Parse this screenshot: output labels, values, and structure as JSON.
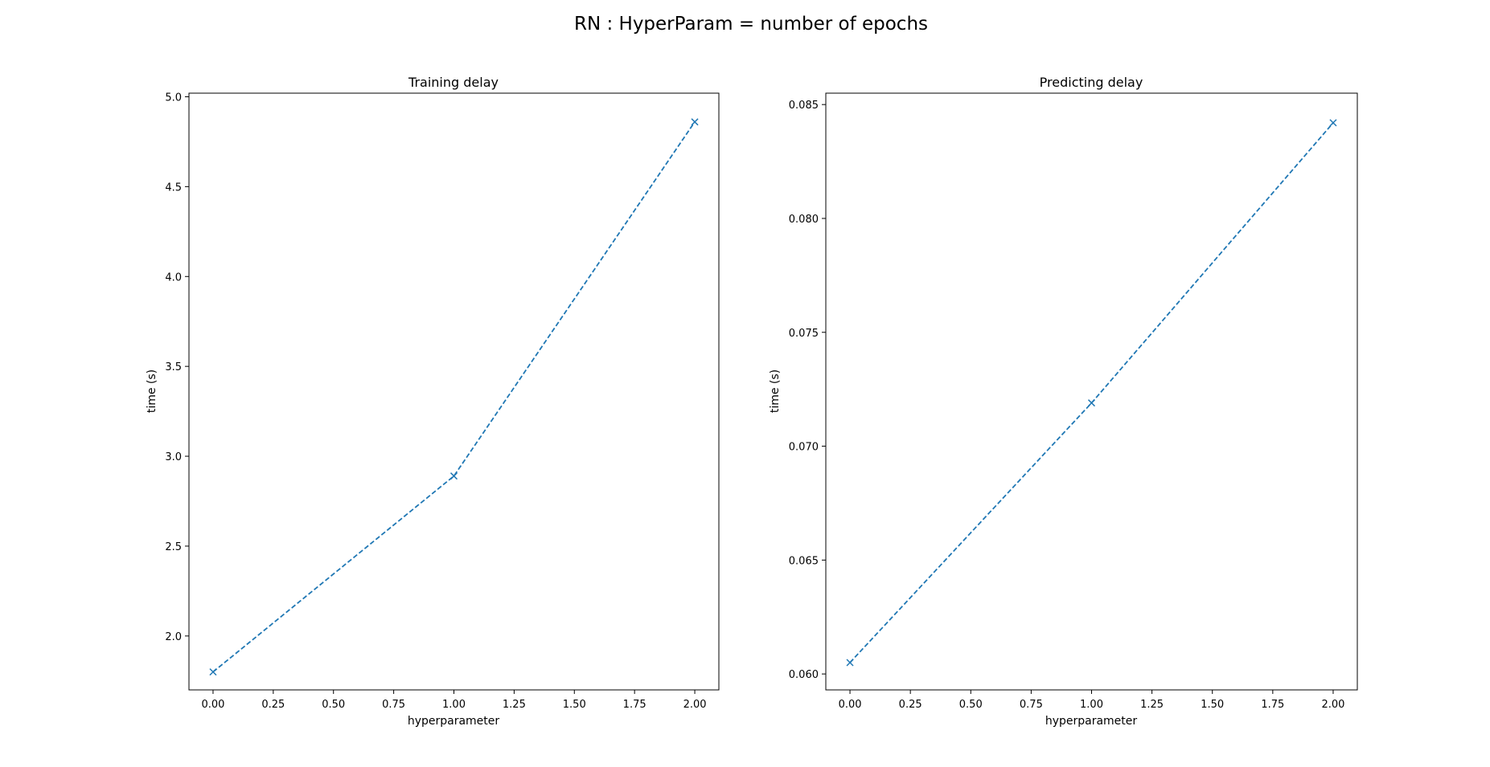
{
  "suptitle": "RN : HyperParam = number of epochs",
  "style": {
    "series_color": "#1f77b4",
    "line_style": "dashed",
    "marker": "x"
  },
  "chart_data": [
    {
      "type": "line",
      "title": "Training delay",
      "xlabel": "hyperparameter",
      "ylabel": "time (s)",
      "xlim": [
        -0.1,
        2.1
      ],
      "ylim": [
        1.7,
        5.02
      ],
      "xticks": [
        0,
        0.25,
        0.5,
        0.75,
        1,
        1.25,
        1.5,
        1.75,
        2
      ],
      "xtick_labels": [
        "0.00",
        "0.25",
        "0.50",
        "0.75",
        "1.00",
        "1.25",
        "1.50",
        "1.75",
        "2.00"
      ],
      "yticks": [
        2,
        2.5,
        3,
        3.5,
        4,
        4.5,
        5
      ],
      "ytick_labels": [
        "2.0",
        "2.5",
        "3.0",
        "3.5",
        "4.0",
        "4.5",
        "5.0"
      ],
      "grid": false,
      "series": [
        {
          "x": [
            0,
            1,
            2
          ],
          "y": [
            1.8,
            2.89,
            4.86
          ]
        }
      ]
    },
    {
      "type": "line",
      "title": "Predicting delay",
      "xlabel": "hyperparameter",
      "ylabel": "time (s)",
      "xlim": [
        -0.1,
        2.1
      ],
      "ylim": [
        0.0593,
        0.0855
      ],
      "xticks": [
        0,
        0.25,
        0.5,
        0.75,
        1,
        1.25,
        1.5,
        1.75,
        2
      ],
      "xtick_labels": [
        "0.00",
        "0.25",
        "0.50",
        "0.75",
        "1.00",
        "1.25",
        "1.50",
        "1.75",
        "2.00"
      ],
      "yticks": [
        0.06,
        0.065,
        0.07,
        0.075,
        0.08,
        0.085
      ],
      "ytick_labels": [
        "0.060",
        "0.065",
        "0.070",
        "0.075",
        "0.080",
        "0.085"
      ],
      "grid": false,
      "series": [
        {
          "x": [
            0,
            1,
            2
          ],
          "y": [
            0.0605,
            0.0719,
            0.0842
          ]
        }
      ]
    }
  ]
}
